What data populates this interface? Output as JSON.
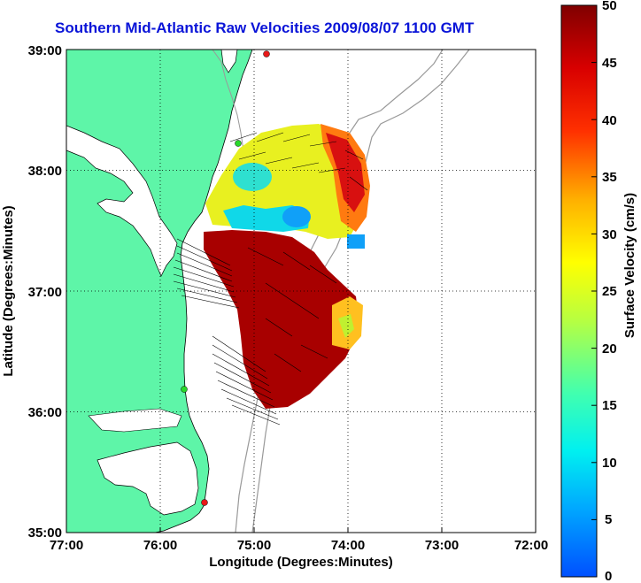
{
  "title": "Southern Mid-Atlantic Raw Velocities 2009/08/07 1100 GMT",
  "map": {
    "xlabel": "Longitude (Degrees:Minutes)",
    "ylabel": "Latitude (Degrees:Minutes)",
    "lon_range": [
      -77,
      -72
    ],
    "lat_range": [
      35,
      39
    ],
    "x_ticks": [
      "77:00",
      "76:00",
      "75:00",
      "74:00",
      "73:00",
      "72:00"
    ],
    "y_ticks": [
      "39:00",
      "38:00",
      "37:00",
      "36:00",
      "35:00"
    ],
    "grid": "dotted",
    "land_color": "#5ef5a8",
    "markers_color": "#e81818",
    "markers_green": "#29d829"
  },
  "colorbar": {
    "label": "Surface Velocity (cm/s)",
    "min": 0,
    "max": 50,
    "ticks": [
      "50",
      "45",
      "40",
      "35",
      "30",
      "25",
      "20",
      "15",
      "10",
      "5",
      "0"
    ]
  }
}
